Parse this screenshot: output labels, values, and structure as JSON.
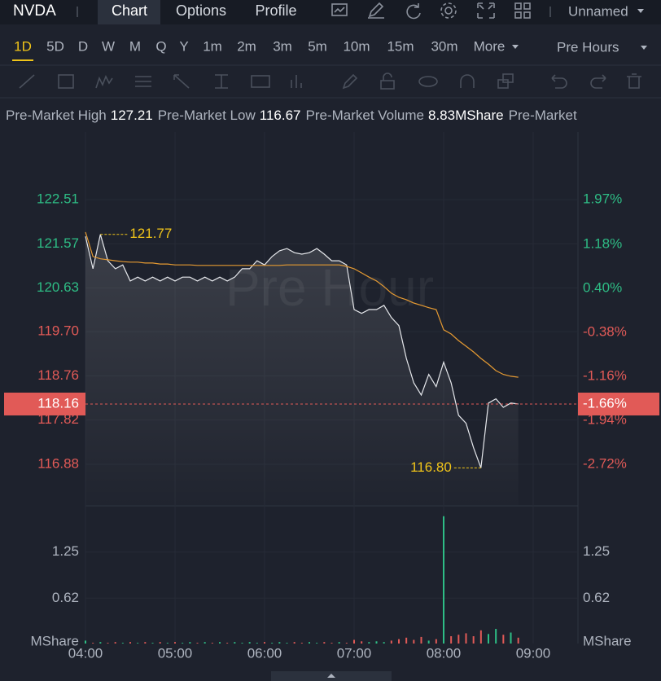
{
  "toolbar": {
    "symbol": "NVDA",
    "tabs": [
      "Chart",
      "Options",
      "Profile"
    ],
    "layout_name": "Unnamed"
  },
  "periods": [
    "1D",
    "5D",
    "D",
    "W",
    "M",
    "Q",
    "Y",
    "1m",
    "2m",
    "3m",
    "5m",
    "10m",
    "15m",
    "30m",
    "More"
  ],
  "session": "Pre Hours",
  "stats": [
    {
      "label": "Pre-Market High",
      "value": 127.21
    },
    {
      "label": "Pre-Market Low",
      "value": 116.67
    },
    {
      "label": "Pre-Market Volume",
      "value": "8.83MShare"
    },
    {
      "label": "Pre-Market"
    }
  ],
  "chart_data": [
    {
      "type": "line",
      "watermark": "Pre Hour",
      "x": [
        "04:00",
        "04:05",
        "04:10",
        "04:15",
        "04:20",
        "04:25",
        "04:30",
        "04:35",
        "04:40",
        "04:45",
        "04:50",
        "04:55",
        "05:00",
        "05:05",
        "05:10",
        "05:15",
        "05:20",
        "05:25",
        "05:30",
        "05:35",
        "05:40",
        "05:45",
        "05:50",
        "05:55",
        "06:00",
        "06:05",
        "06:10",
        "06:15",
        "06:20",
        "06:25",
        "06:30",
        "06:35",
        "06:40",
        "06:45",
        "06:50",
        "06:55",
        "07:00",
        "07:05",
        "07:10",
        "07:15",
        "07:20",
        "07:25",
        "07:30",
        "07:35",
        "07:40",
        "07:45",
        "07:50",
        "07:55",
        "08:00",
        "08:05",
        "08:10",
        "08:15",
        "08:20",
        "08:25",
        "08:30",
        "08:35",
        "08:40",
        "08:45",
        "08:50"
      ],
      "series": [
        {
          "name": "Price",
          "color": "#e6e8ec",
          "values": [
            121.73,
            121.04,
            121.77,
            121.21,
            121.04,
            121.12,
            120.78,
            120.86,
            120.78,
            120.86,
            120.78,
            120.86,
            120.78,
            120.86,
            120.86,
            120.78,
            120.86,
            120.78,
            120.86,
            120.78,
            120.86,
            121.04,
            121.04,
            121.21,
            121.12,
            121.3,
            121.42,
            121.47,
            121.38,
            121.35,
            121.38,
            121.47,
            121.35,
            121.21,
            121.21,
            121.12,
            120.17,
            120.09,
            120.17,
            120.17,
            120.26,
            120.0,
            119.83,
            119.13,
            118.61,
            118.35,
            118.79,
            118.53,
            119.05,
            118.61,
            117.92,
            117.75,
            117.23,
            116.8,
            118.18,
            118.27,
            118.09,
            118.18,
            118.16
          ]
        },
        {
          "name": "Average",
          "color": "#e59a32",
          "values": [
            121.82,
            121.3,
            121.25,
            121.23,
            121.21,
            121.19,
            121.18,
            121.18,
            121.16,
            121.16,
            121.14,
            121.14,
            121.12,
            121.12,
            121.12,
            121.11,
            121.11,
            121.11,
            121.11,
            121.11,
            121.11,
            121.11,
            121.11,
            121.11,
            121.11,
            121.11,
            121.11,
            121.12,
            121.12,
            121.12,
            121.12,
            121.12,
            121.12,
            121.12,
            121.12,
            121.09,
            121.04,
            120.95,
            120.86,
            120.78,
            120.66,
            120.52,
            120.43,
            120.38,
            120.31,
            120.26,
            120.21,
            120.17,
            119.74,
            119.65,
            119.51,
            119.39,
            119.27,
            119.13,
            119.01,
            118.87,
            118.79,
            118.75,
            118.73
          ]
        }
      ],
      "xlim": [
        "04:00",
        "09:30"
      ],
      "xticks": [
        "04:00",
        "05:00",
        "06:00",
        "07:00",
        "08:00",
        "09:00"
      ],
      "ylim": [
        116.01,
        123.95
      ],
      "yticks": [
        {
          "value": 122.51,
          "label": "122.51"
        },
        {
          "value": 121.57,
          "label": "121.57"
        },
        {
          "value": 120.63,
          "label": "120.63"
        },
        {
          "value": 119.7,
          "label": "119.70"
        },
        {
          "value": 118.76,
          "label": "118.76"
        },
        {
          "value": 117.82,
          "label": "117.82"
        },
        {
          "value": 116.88,
          "label": "116.88"
        }
      ],
      "y2lim": [
        -3.44,
        3.17
      ],
      "y2ticks": [
        {
          "value": 1.97,
          "label": "1.97%"
        },
        {
          "value": 1.18,
          "label": "1.18%"
        },
        {
          "value": 0.4,
          "label": "0.40%"
        },
        {
          "value": -0.38,
          "label": "-0.38%"
        },
        {
          "value": -1.16,
          "label": "-1.16%"
        },
        {
          "value": -1.94,
          "label": "-1.94%"
        },
        {
          "value": -2.72,
          "label": "-2.72%"
        }
      ],
      "last_price": 118.16,
      "last_change": {
        "value": -1.66,
        "label": "-1.66%"
      },
      "annotations": [
        {
          "x": "04:10",
          "value": 121.77
        },
        {
          "x": "08:25",
          "value": 116.8,
          "label": "116.80"
        }
      ],
      "up_color": "#2ebd85",
      "down_color": "#e15a57",
      "grid": true
    },
    {
      "type": "bar",
      "ylabel": "MShare",
      "up_color": "#2ebd85",
      "down_color": "#e15a57",
      "values": [
        0.04,
        0.01,
        0.02,
        0.01,
        0.02,
        0.01,
        0.02,
        0.01,
        0.02,
        0.01,
        0.02,
        0.01,
        0.02,
        0.01,
        0.02,
        0.01,
        0.02,
        0.01,
        0.02,
        0.01,
        0.02,
        0.01,
        0.02,
        0.01,
        0.02,
        0.01,
        0.02,
        0.01,
        0.02,
        0.01,
        0.02,
        0.01,
        0.02,
        0.01,
        0.02,
        0.01,
        0.05,
        0.03,
        0.02,
        0.03,
        0.02,
        0.04,
        0.06,
        0.08,
        0.05,
        0.09,
        0.04,
        0.06,
        1.74,
        0.1,
        0.12,
        0.14,
        0.1,
        0.18,
        0.13,
        0.2,
        0.12,
        0.15,
        0.08
      ],
      "ylim": [
        0,
        1.87
      ],
      "yticks": [
        0.62,
        1.25
      ]
    }
  ]
}
